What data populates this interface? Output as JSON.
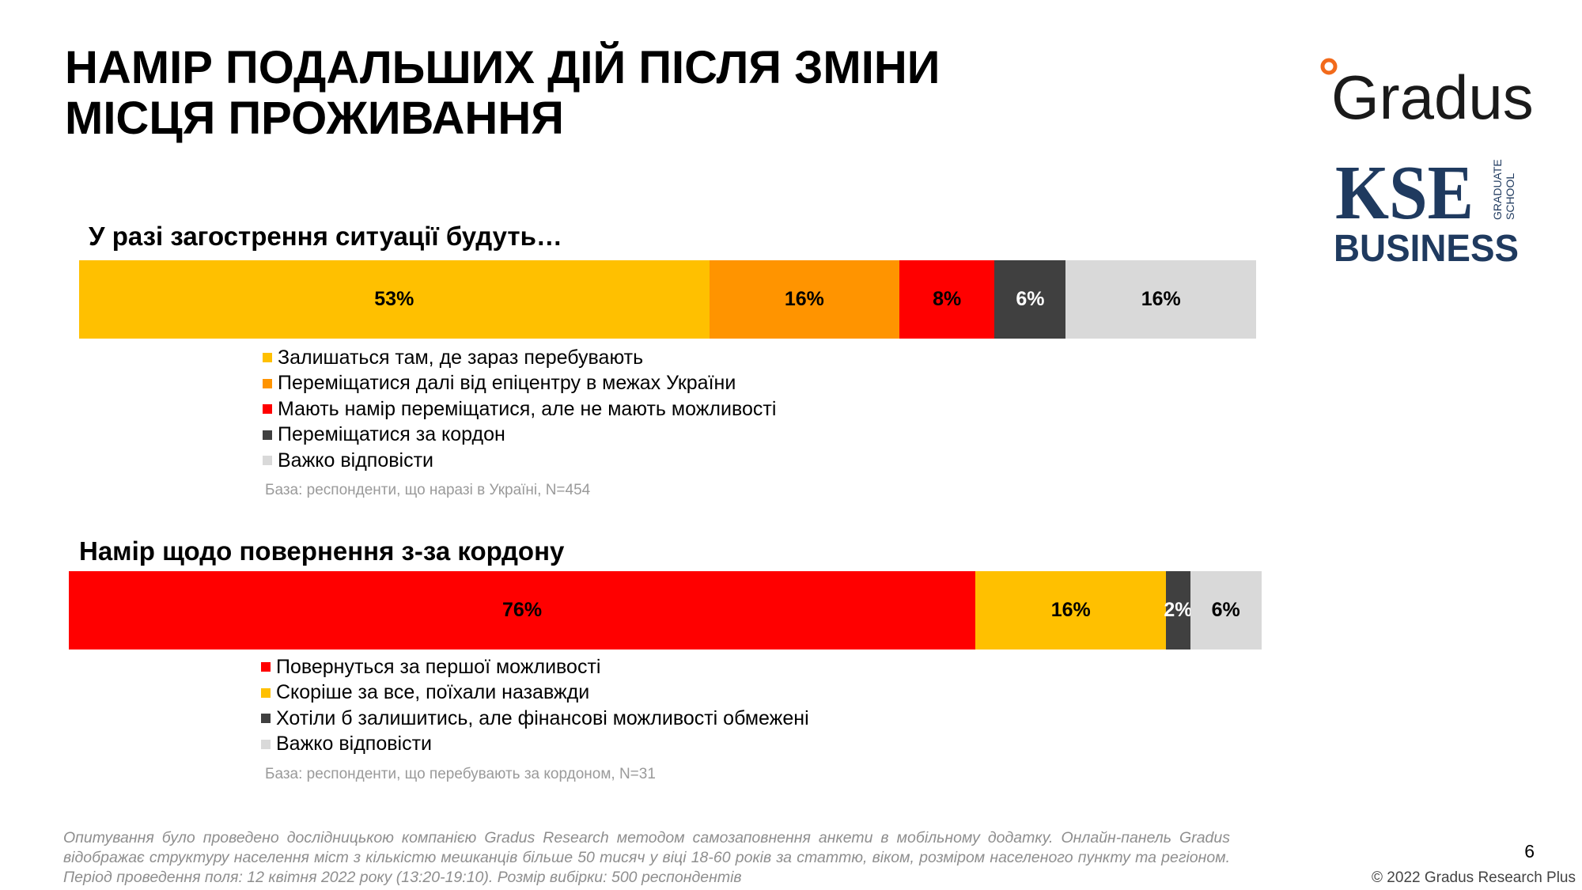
{
  "title": {
    "line1": "НАМІР ПОДАЛЬШИХ ДІЙ ПІСЛЯ ЗМІНИ",
    "line2": "МІСЦЯ ПРОЖИВАННЯ"
  },
  "logos": {
    "gradus": "Gradus",
    "kse": "KSE",
    "kse_side_1": "GRADUATE",
    "kse_side_2": "SCHOOL",
    "kse_business": "BUSINESS"
  },
  "chart_data": [
    {
      "type": "bar",
      "orientation": "horizontal-stacked-100",
      "title": "У разі загострення ситуації будуть…",
      "series": [
        {
          "name": "Залишаться там, де зараз перебувають",
          "value": 53,
          "label": "53%",
          "color": "#FFC000"
        },
        {
          "name": "Переміщатися далі від епіцентру в межах України",
          "value": 16,
          "label": "16%",
          "color": "#FF9400"
        },
        {
          "name": "Мають намір переміщатися, але не мають можливості",
          "value": 8,
          "label": "8%",
          "color": "#FF0000"
        },
        {
          "name": "Переміщатися за кордон",
          "value": 6,
          "label": "6%",
          "color": "#404040"
        },
        {
          "name": "Важко відповісти",
          "value": 16,
          "label": "16%",
          "color": "#D9D9D9"
        }
      ],
      "base_note": "База: респонденти, що наразі в Україні, N=454"
    },
    {
      "type": "bar",
      "orientation": "horizontal-stacked-100",
      "title": "Намір щодо повернення з-за кордону",
      "series": [
        {
          "name": "Повернуться за першої можливості",
          "value": 76,
          "label": "76%",
          "color": "#FF0000"
        },
        {
          "name": "Скоріше за все, поїхали назавжди",
          "value": 16,
          "label": "16%",
          "color": "#FFC000"
        },
        {
          "name": "Хотіли б залишитись, але фінансові можливості обмежені",
          "value": 2,
          "label": "2%",
          "color": "#404040"
        },
        {
          "name": "Важко відповісти",
          "value": 6,
          "label": "6%",
          "color": "#D9D9D9"
        }
      ],
      "base_note": "База: респонденти, що перебувають за кордоном, N=31"
    }
  ],
  "footer": {
    "note": "Опитування було проведено дослідницькою компанією Gradus Research методом самозаповнення анкети в мобільному додатку. Онлайн-панель Gradus відображає структуру населення міст з кількістю мешканців більше 50 тисяч у віці 18-60 років за статтю, віком, розміром населеного пункту та регіоном. Період проведення поля: 12 квітня 2022 року (13:20-19:10). Розмір вибірки: 500 респондентів",
    "page_number": "6",
    "copyright": "© 2022 Gradus Research Plus"
  }
}
